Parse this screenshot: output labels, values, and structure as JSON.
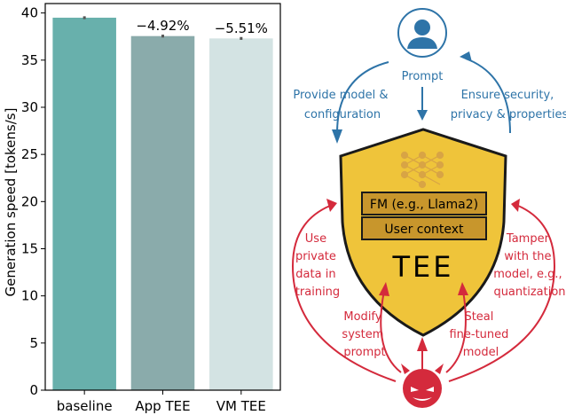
{
  "chart_data": {
    "type": "bar",
    "categories": [
      "baseline",
      "App TEE",
      "VM TEE"
    ],
    "values": [
      39.5,
      37.55,
      37.3
    ],
    "errors": [
      0.15,
      0.15,
      0.15
    ],
    "annotations": [
      "",
      "−4.92%",
      "−5.51%"
    ],
    "colors": [
      "#68b0ac",
      "#8aabab",
      "#d3e3e3"
    ],
    "ylabel": "Generation speed [tokens/s]",
    "ylim": [
      0,
      41
    ],
    "yticks": [
      0,
      5,
      10,
      15,
      20,
      25,
      30,
      35,
      40
    ],
    "grid": false
  },
  "diagram": {
    "prompt_label": "Prompt",
    "provide_label": [
      "Provide model &",
      "configuration"
    ],
    "ensure_label": [
      "Ensure security,",
      "privacy & properties"
    ],
    "fm_label": "FM (e.g., Llama2)",
    "context_label": "User context",
    "tee_label": "TEE",
    "use_label": [
      "Use",
      "private",
      "data in",
      "training"
    ],
    "modify_label": [
      "Modify",
      "system",
      "prompt"
    ],
    "steal_label": [
      "Steal",
      "fine-tuned",
      "model"
    ],
    "tamper_label": [
      "Tamper",
      "with the",
      "model, e.g.,",
      "quantization"
    ],
    "colors": {
      "blue": "#2e74a8",
      "red": "#d42a3c",
      "shield_fill": "#efc43a",
      "box_fill": "#c8962c",
      "icon_gray": "#e0b24a"
    }
  }
}
